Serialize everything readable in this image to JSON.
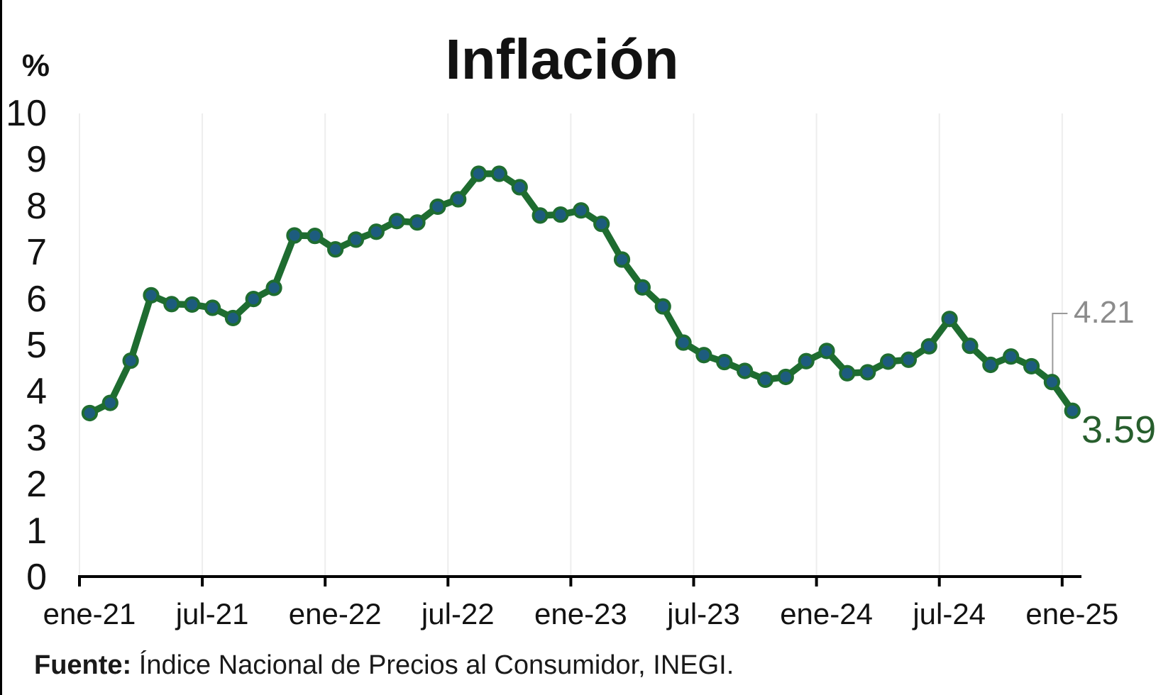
{
  "title": "Inflación",
  "y_axis_unit": "%",
  "annotations": {
    "previous_value": "4.21",
    "latest_value": "3.59"
  },
  "source": {
    "label": "Fuente:",
    "text": " Índice Nacional de Precios al Consumidor, INEGI."
  },
  "chart_data": {
    "type": "line",
    "title": "Inflación",
    "ylabel": "%",
    "xlabel": "",
    "ylim": [
      0,
      10
    ],
    "y_ticks": [
      0,
      1,
      2,
      3,
      4,
      5,
      6,
      7,
      8,
      9,
      10
    ],
    "x_tick_labels": [
      "ene-21",
      "jul-21",
      "ene-22",
      "jul-22",
      "ene-23",
      "jul-23",
      "ene-24",
      "jul-24",
      "ene-25"
    ],
    "grid": "vertical-only",
    "legend": "none",
    "x": [
      "ene-21",
      "feb-21",
      "mar-21",
      "abr-21",
      "may-21",
      "jun-21",
      "jul-21",
      "ago-21",
      "sep-21",
      "oct-21",
      "nov-21",
      "dic-21",
      "ene-22",
      "feb-22",
      "mar-22",
      "abr-22",
      "may-22",
      "jun-22",
      "jul-22",
      "ago-22",
      "sep-22",
      "oct-22",
      "nov-22",
      "dic-22",
      "ene-23",
      "feb-23",
      "mar-23",
      "abr-23",
      "may-23",
      "jun-23",
      "jul-23",
      "ago-23",
      "sep-23",
      "oct-23",
      "nov-23",
      "dic-23",
      "ene-24",
      "feb-24",
      "mar-24",
      "abr-24",
      "may-24",
      "jun-24",
      "jul-24",
      "ago-24",
      "sep-24",
      "oct-24",
      "nov-24",
      "dic-24",
      "ene-25"
    ],
    "values": [
      3.54,
      3.76,
      4.67,
      6.08,
      5.89,
      5.88,
      5.81,
      5.59,
      6.0,
      6.24,
      7.37,
      7.36,
      7.07,
      7.28,
      7.45,
      7.68,
      7.65,
      7.99,
      8.15,
      8.7,
      8.7,
      8.41,
      7.8,
      7.82,
      7.91,
      7.62,
      6.85,
      6.25,
      5.84,
      5.06,
      4.79,
      4.64,
      4.45,
      4.26,
      4.32,
      4.66,
      4.88,
      4.4,
      4.42,
      4.65,
      4.69,
      4.98,
      5.57,
      4.99,
      4.58,
      4.76,
      4.55,
      4.21,
      3.59
    ],
    "callout": {
      "target_month": "dic-24",
      "value": "4.21"
    },
    "end_label": {
      "target_month": "ene-25",
      "value": "3.59"
    },
    "colors": {
      "line": "#1e6c30",
      "marker_fill": "#1d5c7e",
      "marker_ring": "#1e6c30",
      "annotation_previous": "#8c8c8c",
      "annotation_latest": "#275e2d",
      "gridline": "#ededed",
      "axis": "#000000"
    }
  }
}
